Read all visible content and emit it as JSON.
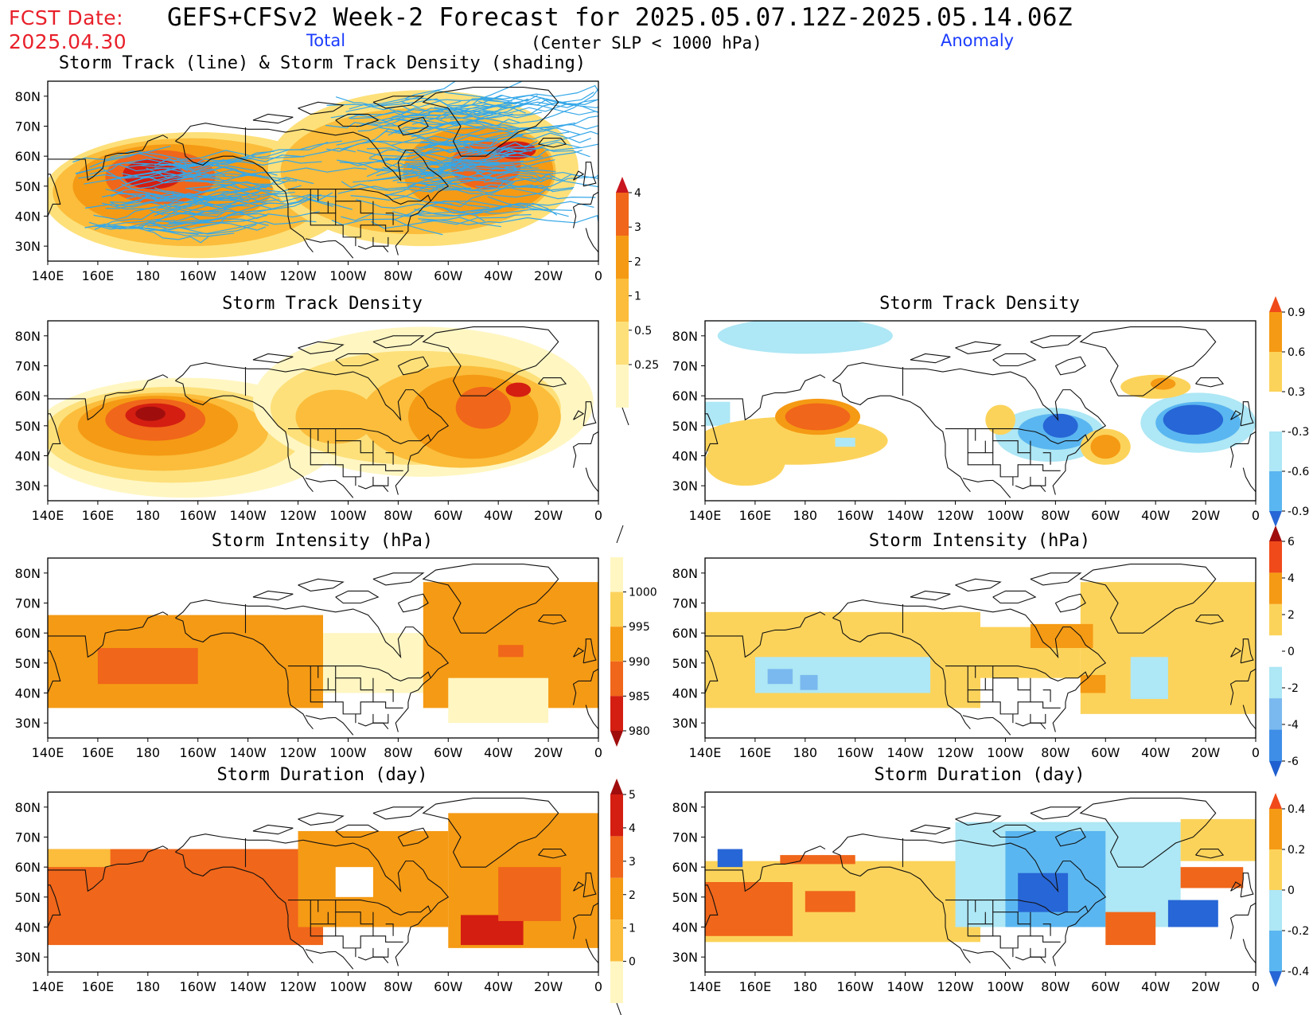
{
  "header": {
    "fcst_label": "FCST Date:",
    "fcst_date": "2025.04.30",
    "title": "GEFS+CFSv2 Week-2 Forecast for 2025.05.07.12Z-2025.05.14.06Z",
    "subtitle": "(Center SLP < 1000 hPa)",
    "col_total": "Total",
    "col_anomaly": "Anomaly"
  },
  "axes": {
    "lon_ticks": [
      "140E",
      "160E",
      "180",
      "160W",
      "140W",
      "120W",
      "100W",
      "80W",
      "60W",
      "40W",
      "20W",
      "0"
    ],
    "lat_ticks": [
      "80N",
      "70N",
      "60N",
      "50N",
      "40N",
      "30N"
    ]
  },
  "panels": {
    "track": {
      "title": "Storm Track (line) & Storm Track Density (shading)"
    },
    "density_total": {
      "title": "Storm Track Density"
    },
    "density_anom": {
      "title": "Storm Track Density"
    },
    "intensity_total": {
      "title": "Storm Intensity (hPa)"
    },
    "intensity_anom": {
      "title": "Storm Intensity (hPa)"
    },
    "duration_total": {
      "title": "Storm Duration (day)"
    },
    "duration_anom": {
      "title": "Storm Duration (day)"
    }
  },
  "colorbars": {
    "density_total": {
      "labels": [
        "4",
        "3",
        "2",
        "1",
        "0.5",
        "0.25"
      ],
      "colors": [
        "#c8151e",
        "#f0661a",
        "#f59a14",
        "#fbbd3b",
        "#fde07a",
        "#fff6c2"
      ]
    },
    "density_anom": {
      "labels": [
        "0.9",
        "0.6",
        "0.3",
        "-0.3",
        "-0.6",
        "-0.9"
      ],
      "colors": [
        "#f04a1a",
        "#f59a14",
        "#fcd35a",
        "#ffffff",
        "#aee7f5",
        "#5ab6f0",
        "#2766d6"
      ]
    },
    "intensity_total": {
      "labels": [
        "1000",
        "995",
        "990",
        "985",
        "980"
      ],
      "colors": [
        "#fff6c2",
        "#fcd35a",
        "#f59a14",
        "#f0661a",
        "#d41e12",
        "#a00d0d"
      ]
    },
    "intensity_anom": {
      "labels": [
        "6",
        "4",
        "2",
        "0",
        "-2",
        "-4",
        "-6"
      ],
      "colors": [
        "#a00d0d",
        "#f04a1a",
        "#f59a14",
        "#fcd35a",
        "#ffffff",
        "#aee7f5",
        "#7ab9ef",
        "#3e8ee8",
        "#1f5fd0"
      ]
    },
    "duration_total": {
      "labels": [
        "5",
        "4",
        "3",
        "2",
        "1",
        "0"
      ],
      "colors": [
        "#a00d0d",
        "#d41e12",
        "#f0661a",
        "#f59a14",
        "#fbbd3b",
        "#fff6c2"
      ]
    },
    "duration_anom": {
      "labels": [
        "0.4",
        "0.2",
        "0",
        "-0.2",
        "-0.4"
      ],
      "colors": [
        "#f04a1a",
        "#f59a14",
        "#fcd35a",
        "#aee7f5",
        "#5ab6f0",
        "#2766d6"
      ]
    }
  },
  "colors": {
    "track_line": "#35a7e8",
    "coast": "#111111"
  }
}
